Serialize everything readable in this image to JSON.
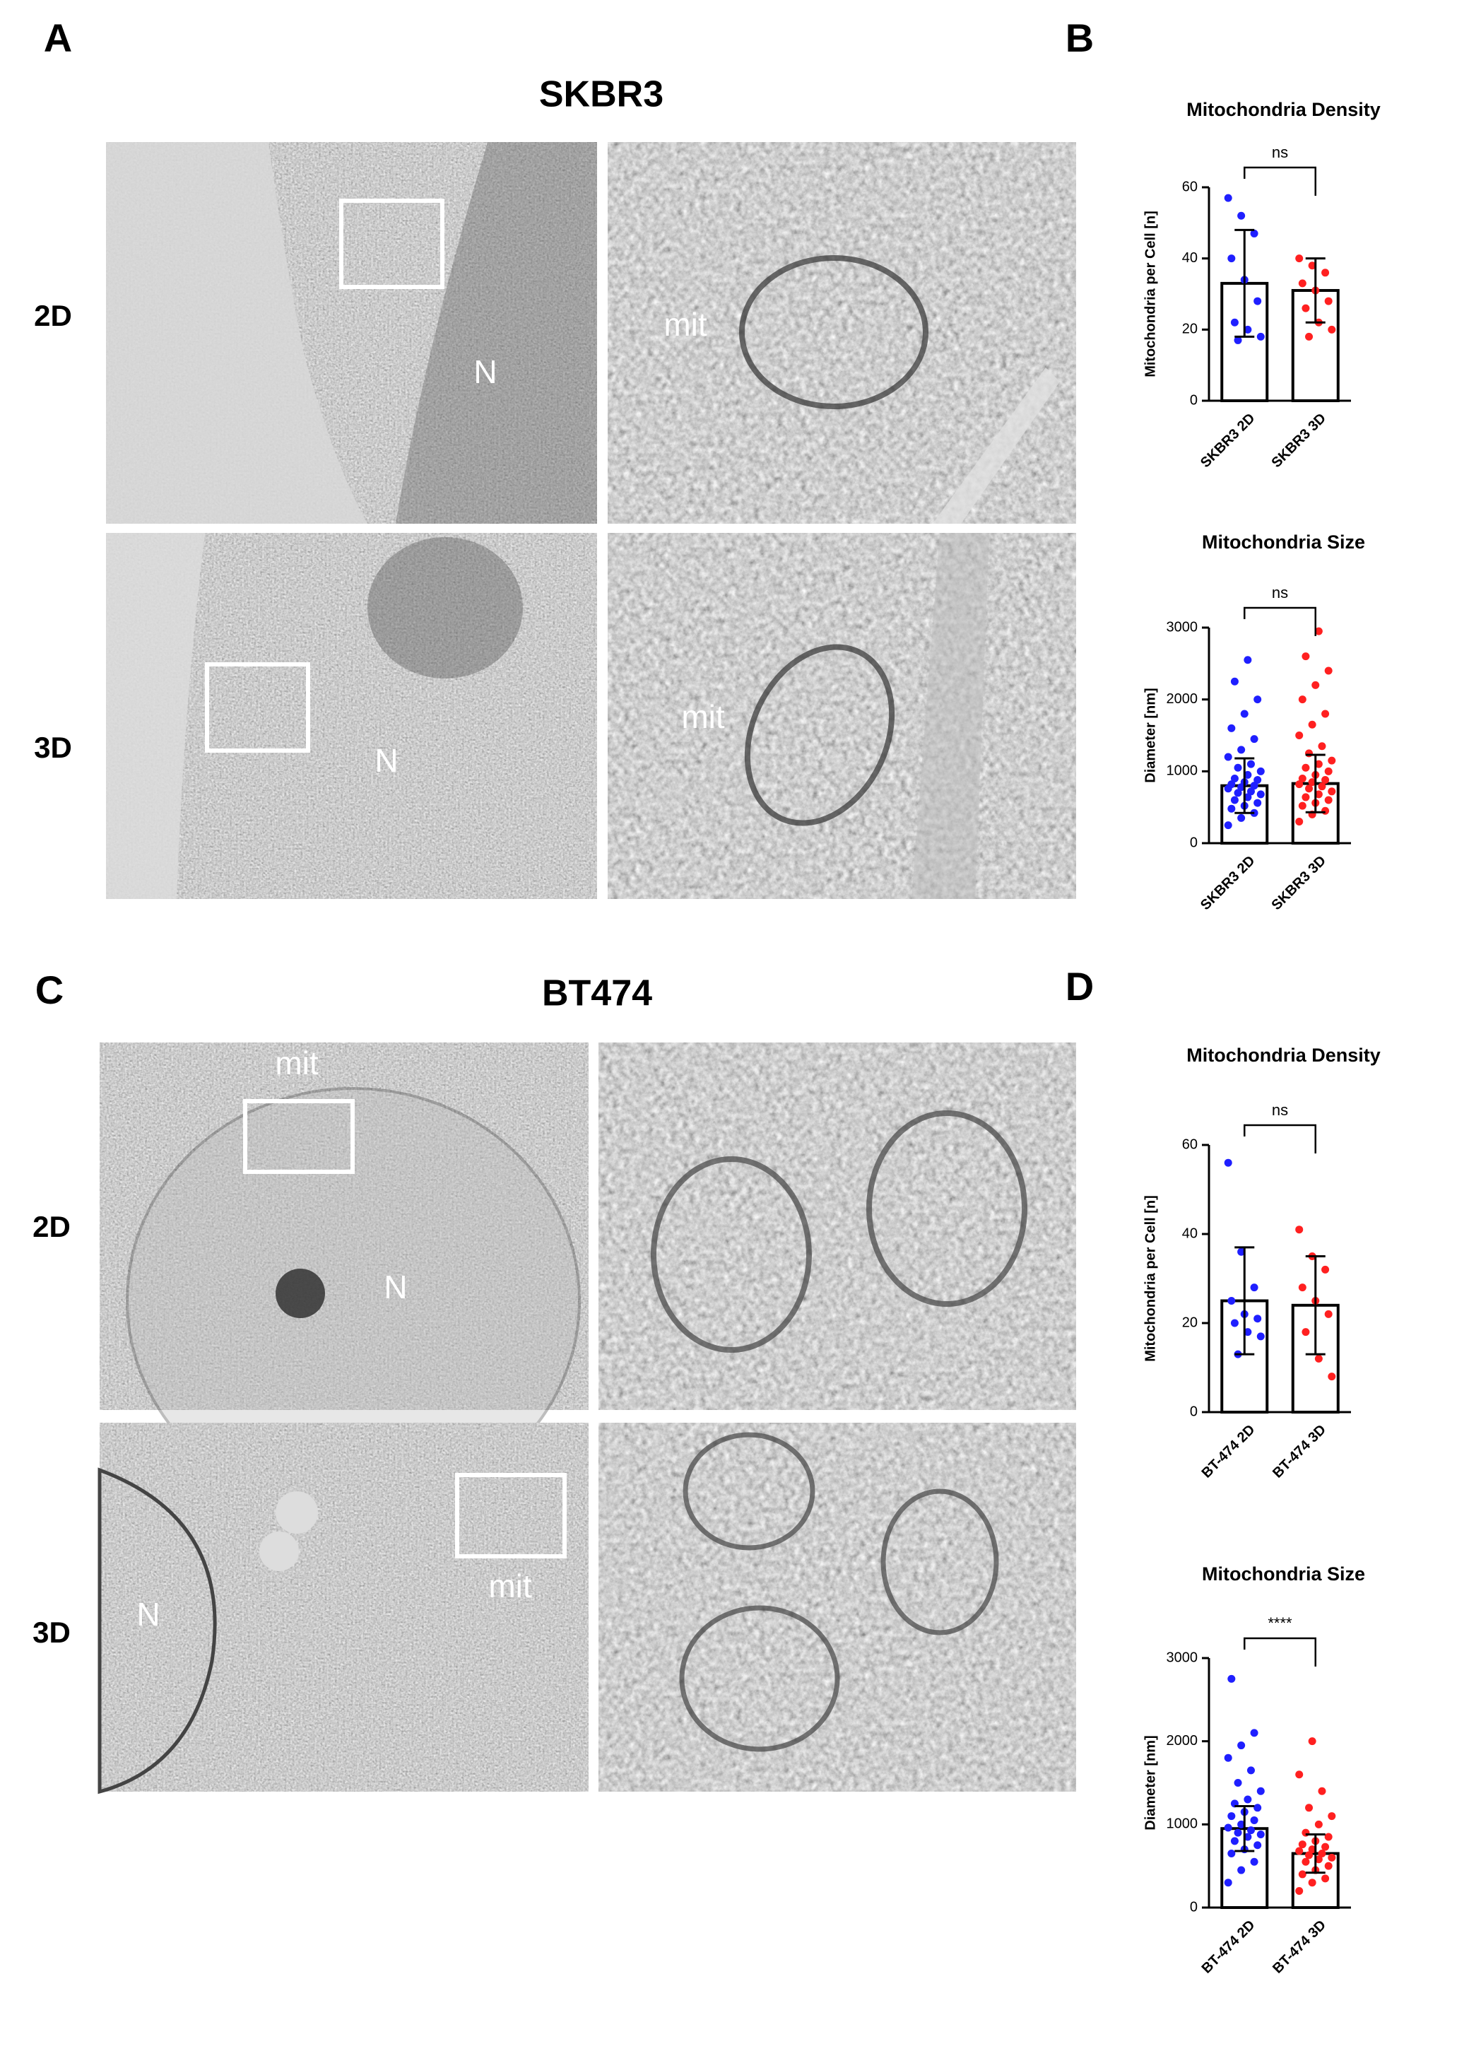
{
  "panels": [
    {
      "letter": "A",
      "title": "SKBR3",
      "rows": [
        "2D",
        "3D"
      ],
      "labels": [
        "N",
        "mit",
        "N",
        "mit"
      ]
    },
    {
      "letter": "B"
    },
    {
      "letter": "C",
      "title": "BT474",
      "rows": [
        "2D",
        "3D"
      ],
      "labels": [
        "mit",
        "N",
        "N",
        "mit"
      ]
    },
    {
      "letter": "D"
    }
  ],
  "chart_data": [
    {
      "type": "bar",
      "title": "Mitochondria Density",
      "ylabel": "Mitochondria per Cell [n]",
      "categories": [
        "SKBR3 2D",
        "SKBR3 3D"
      ],
      "values": [
        33,
        31
      ],
      "errors": [
        15,
        9
      ],
      "points": [
        [
          57,
          52,
          47,
          40,
          34,
          28,
          22,
          20,
          18,
          17
        ],
        [
          40,
          38,
          36,
          33,
          31,
          28,
          26,
          22,
          20,
          18
        ]
      ],
      "colors": [
        "#1f1fff",
        "#ff2020"
      ],
      "annotation": "ns",
      "ylim": [
        0,
        60
      ],
      "yticks": [
        0,
        20,
        40,
        60
      ]
    },
    {
      "type": "bar",
      "title": "Mitochondria Size",
      "ylabel": "Diameter [nm]",
      "categories": [
        "SKBR3 2D",
        "SKBR3 3D"
      ],
      "values": [
        800,
        830
      ],
      "errors": [
        380,
        400
      ],
      "points": [
        [
          250,
          350,
          420,
          480,
          520,
          560,
          600,
          640,
          680,
          700,
          720,
          760,
          780,
          800,
          820,
          850,
          880,
          900,
          950,
          1000,
          1050,
          1100,
          1200,
          1300,
          1450,
          1600,
          1800,
          2000,
          2250,
          2550
        ],
        [
          300,
          400,
          450,
          520,
          560,
          600,
          640,
          680,
          720,
          760,
          790,
          820,
          850,
          880,
          900,
          950,
          1000,
          1050,
          1100,
          1150,
          1250,
          1350,
          1500,
          1650,
          1800,
          2000,
          2200,
          2400,
          2600,
          2950
        ]
      ],
      "colors": [
        "#1f1fff",
        "#ff2020"
      ],
      "annotation": "ns",
      "ylim": [
        0,
        3000
      ],
      "yticks": [
        0,
        1000,
        2000,
        3000
      ]
    },
    {
      "type": "bar",
      "title": "Mitochondria Density",
      "ylabel": "Mitochondria per Cell [n]",
      "categories": [
        "BT-474 2D",
        "BT-474 3D"
      ],
      "values": [
        25,
        24
      ],
      "errors": [
        12,
        11
      ],
      "points": [
        [
          56,
          36,
          28,
          25,
          22,
          21,
          20,
          18,
          17,
          13
        ],
        [
          41,
          35,
          32,
          28,
          25,
          22,
          18,
          12,
          8
        ]
      ],
      "colors": [
        "#1f1fff",
        "#ff2020"
      ],
      "annotation": "ns",
      "ylim": [
        0,
        60
      ],
      "yticks": [
        0,
        20,
        40,
        60
      ]
    },
    {
      "type": "bar",
      "title": "Mitochondria Size",
      "ylabel": "Diameter [nm]",
      "categories": [
        "BT-474 2D",
        "BT-474 3D"
      ],
      "values": [
        950,
        650
      ],
      "errors": [
        270,
        230
      ],
      "points": [
        [
          300,
          450,
          550,
          650,
          700,
          750,
          800,
          850,
          880,
          900,
          930,
          960,
          1000,
          1050,
          1100,
          1150,
          1200,
          1250,
          1300,
          1400,
          1500,
          1650,
          1800,
          1950,
          2100,
          2750
        ],
        [
          200,
          300,
          350,
          400,
          450,
          500,
          550,
          580,
          600,
          630,
          650,
          680,
          700,
          730,
          760,
          800,
          850,
          900,
          1000,
          1100,
          1200,
          1400,
          1600,
          2000
        ]
      ],
      "colors": [
        "#1f1fff",
        "#ff2020"
      ],
      "annotation": "****",
      "ylim": [
        0,
        3000
      ],
      "yticks": [
        0,
        1000,
        2000,
        3000
      ]
    }
  ]
}
